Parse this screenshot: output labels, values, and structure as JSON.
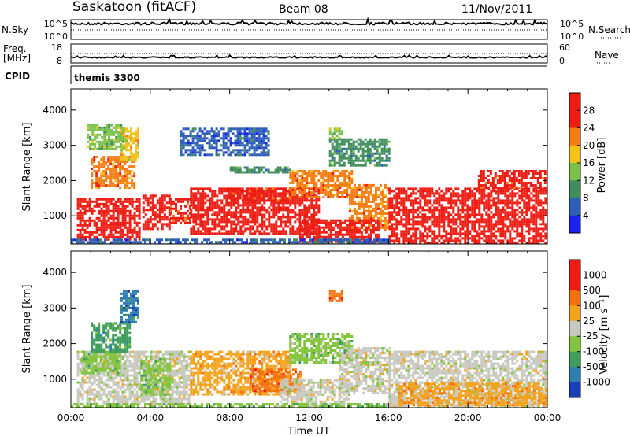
{
  "header": {
    "station": "Saskatoon (fitACF)",
    "beam": "Beam 08",
    "date": "11/Nov/2011"
  },
  "chart_data": [
    {
      "type": "line",
      "panel": "sky-search",
      "left_label": "N.Sky",
      "right_label": "N.Search",
      "left_ticks": [
        "10^5",
        "10^0"
      ],
      "right_ticks": [
        "10^5",
        "10^0"
      ],
      "series": [
        {
          "name": "N.Sky",
          "style": "solid"
        },
        {
          "name": "N.Search",
          "style": "dotted"
        }
      ]
    },
    {
      "type": "line",
      "panel": "freq-nave",
      "left_label": "Freq.",
      "left_unit": "[MHz]",
      "right_label": "Nave",
      "left_ticks": [
        "18",
        "8"
      ],
      "right_ticks": [
        "60",
        "0"
      ],
      "series": [
        {
          "name": "Freq.",
          "style": "solid",
          "approx_value": 10.5
        },
        {
          "name": "Nave",
          "style": "dotted"
        }
      ]
    },
    {
      "type": "table",
      "panel": "cpid",
      "label": "CPID",
      "value": "themis 3300"
    },
    {
      "type": "heatmap",
      "panel": "power",
      "ylabel": "Slant Range [km]",
      "yticks": [
        "1000",
        "2000",
        "3000",
        "4000"
      ],
      "ylim": [
        200,
        4600
      ],
      "xlim_hours": [
        0,
        24
      ],
      "colorbar_label": "Power [dB]",
      "colorbar_ticks": [
        "4",
        "8",
        "12",
        "16",
        "20",
        "24",
        "28"
      ],
      "colorbar_colors": [
        "#1a22ee",
        "#2e5fb8",
        "#3f8e5c",
        "#78c24a",
        "#f5c21b",
        "#f57d12",
        "#ee1c12",
        "#ee1c12"
      ],
      "regions": [
        {
          "t0": 0.3,
          "t1": 3.5,
          "r0": 350,
          "r1": 1500,
          "level": 7
        },
        {
          "t0": 1.0,
          "t1": 3.2,
          "r0": 1800,
          "r1": 2700,
          "level": 5
        },
        {
          "t0": 2.5,
          "t1": 3.4,
          "r0": 2600,
          "r1": 3500,
          "level": 4
        },
        {
          "t0": 3.6,
          "t1": 5.0,
          "r0": 600,
          "r1": 1600,
          "level": 7
        },
        {
          "t0": 5.0,
          "t1": 6.0,
          "r0": 800,
          "r1": 1500,
          "level": 6
        },
        {
          "t0": 6.0,
          "t1": 12.5,
          "r0": 500,
          "r1": 1800,
          "level": 7
        },
        {
          "t0": 8.0,
          "t1": 11.0,
          "r0": 1400,
          "r1": 1800,
          "level": 6
        },
        {
          "t0": 11.0,
          "t1": 14.2,
          "r0": 1500,
          "r1": 2300,
          "level": 5
        },
        {
          "t0": 14.0,
          "t1": 16.0,
          "r0": 600,
          "r1": 1900,
          "level": 5
        },
        {
          "t0": 11.5,
          "t1": 15.5,
          "r0": 250,
          "r1": 900,
          "level": 7
        },
        {
          "t0": 16.0,
          "t1": 24.0,
          "r0": 250,
          "r1": 1800,
          "level": 7
        },
        {
          "t0": 20.5,
          "t1": 24.0,
          "r0": 1800,
          "r1": 2300,
          "level": 6
        },
        {
          "t0": 5.5,
          "t1": 10.0,
          "r0": 2700,
          "r1": 3500,
          "level": 1
        },
        {
          "t0": 13.0,
          "t1": 16.0,
          "r0": 2400,
          "r1": 3200,
          "level": 2
        },
        {
          "t0": 13.0,
          "t1": 13.6,
          "r0": 3200,
          "r1": 3500,
          "level": 3
        },
        {
          "t0": 0.8,
          "t1": 2.6,
          "r0": 2900,
          "r1": 3600,
          "level": 3
        },
        {
          "t0": 8.0,
          "t1": 11.0,
          "r0": 2200,
          "r1": 2400,
          "level": 2
        },
        {
          "t0": 0.0,
          "t1": 16.0,
          "r0": 200,
          "r1": 350,
          "level": 1
        }
      ]
    },
    {
      "type": "heatmap",
      "panel": "velocity",
      "ylabel": "Slant Range [km]",
      "yticks": [
        "1000",
        "2000",
        "3000",
        "4000"
      ],
      "ylim": [
        200,
        4600
      ],
      "xlim_hours": [
        0,
        24
      ],
      "xticks": [
        "00:00",
        "04:00",
        "08:00",
        "12:00",
        "16:00",
        "20:00",
        "00:00"
      ],
      "xlabel": "Time UT",
      "colorbar_label": "Velocity [m s⁻¹]",
      "colorbar_ticks": [
        "1000",
        "500",
        "100",
        "25",
        "-25",
        "-100",
        "-500",
        "-1000"
      ],
      "colorbar_colors": [
        "#1a3fb8",
        "#2e7fb0",
        "#3f9e5c",
        "#82c43a",
        "#c8c8c0",
        "#f5a21b",
        "#f5700f",
        "#ee1c12",
        "#ee1c12"
      ],
      "regions": [
        {
          "t0": 0.3,
          "t1": 6.0,
          "r0": 300,
          "r1": 1800,
          "level": 4
        },
        {
          "t0": 0.5,
          "t1": 2.5,
          "r0": 1200,
          "r1": 1800,
          "level": 3
        },
        {
          "t0": 1.0,
          "t1": 3.0,
          "r0": 1800,
          "r1": 2600,
          "level": 2
        },
        {
          "t0": 2.5,
          "t1": 3.4,
          "r0": 2600,
          "r1": 3500,
          "level": 1
        },
        {
          "t0": 3.5,
          "t1": 5.0,
          "r0": 600,
          "r1": 1600,
          "level": 3
        },
        {
          "t0": 6.0,
          "t1": 11.0,
          "r0": 600,
          "r1": 1800,
          "level": 5
        },
        {
          "t0": 9.0,
          "t1": 11.5,
          "r0": 700,
          "r1": 1300,
          "level": 6
        },
        {
          "t0": 10.5,
          "t1": 14.0,
          "r0": 300,
          "r1": 1000,
          "level": 4
        },
        {
          "t0": 11.0,
          "t1": 14.2,
          "r0": 1500,
          "r1": 2300,
          "level": 3
        },
        {
          "t0": 13.5,
          "t1": 16.0,
          "r0": 600,
          "r1": 1900,
          "level": 4
        },
        {
          "t0": 16.0,
          "t1": 24.0,
          "r0": 250,
          "r1": 1800,
          "level": 4
        },
        {
          "t0": 16.5,
          "t1": 24.0,
          "r0": 300,
          "r1": 900,
          "level": 5
        },
        {
          "t0": 13.0,
          "t1": 13.6,
          "r0": 3200,
          "r1": 3500,
          "level": 6
        },
        {
          "t0": 0.0,
          "t1": 16.0,
          "r0": 200,
          "r1": 330,
          "level": 3
        }
      ]
    }
  ]
}
